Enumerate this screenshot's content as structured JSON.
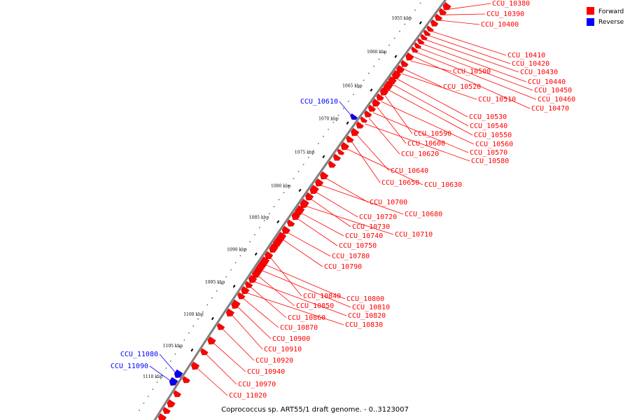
{
  "caption": "Coprococcus sp. ART55/1 draft genome. - 0..3123007",
  "legend": [
    {
      "label": "Forward",
      "color": "#ff0000"
    },
    {
      "label": "Reverse",
      "color": "#0000ff"
    }
  ],
  "colors": {
    "forward": "#ff0000",
    "reverse": "#0000ff",
    "backbone": "#808080"
  },
  "ticks": [
    "1055 kbp",
    "1060 kbp",
    "1065 kbp",
    "1070 kbp",
    "1075 kbp",
    "1080 kbp",
    "1085 kbp",
    "1090 kbp",
    "1095 kbp",
    "1100 kbp",
    "1105 kbp",
    "1110 kbp"
  ],
  "forward_labels": [
    "CCU_10380",
    "CCU_10390",
    "CCU_10400",
    "CCU_10410",
    "CCU_10420",
    "CCU_10430",
    "CCU_10440",
    "CCU_10450",
    "CCU_10460",
    "CCU_10470",
    "CCU_10500",
    "CCU_10520",
    "CCU_10510",
    "CCU_10530",
    "CCU_10540",
    "CCU_10550",
    "CCU_10590",
    "CCU_10560",
    "CCU_10600",
    "CCU_10570",
    "CCU_10620",
    "CCU_10580",
    "CCU_10640",
    "CCU_10650",
    "CCU_10630",
    "CCU_10700",
    "CCU_10680",
    "CCU_10720",
    "CCU_10730",
    "CCU_10710",
    "CCU_10740",
    "CCU_10750",
    "CCU_10780",
    "CCU_10790",
    "CCU_10840",
    "CCU_10800",
    "CCU_10810",
    "CCU_10850",
    "CCU_10820",
    "CCU_10860",
    "CCU_10830",
    "CCU_10870",
    "CCU_10900",
    "CCU_10910",
    "CCU_10920",
    "CCU_10940",
    "CCU_10970",
    "CCU_11020"
  ],
  "reverse_labels": [
    "CCU_10610",
    "CCU_11080",
    "CCU_11090"
  ]
}
